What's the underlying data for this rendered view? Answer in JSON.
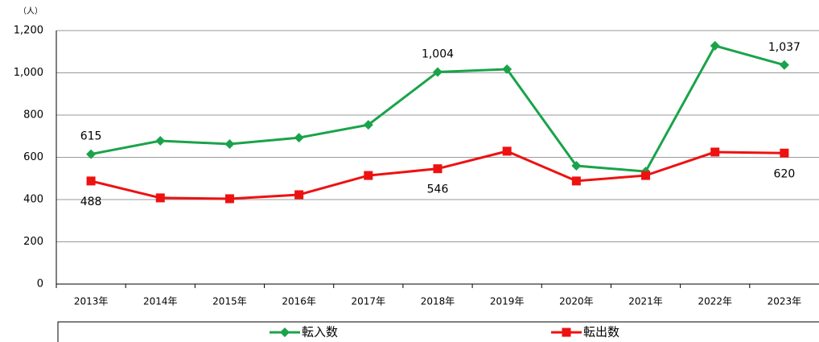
{
  "chart_data": {
    "type": "line",
    "y_axis_unit": "（人）",
    "categories": [
      "2013年",
      "2014年",
      "2015年",
      "2016年",
      "2017年",
      "2018年",
      "2019年",
      "2020年",
      "2021年",
      "2022年",
      "2023年"
    ],
    "series": [
      {
        "name": "転入数",
        "color": "#1aa34a",
        "marker": "diamond",
        "values": [
          615,
          678,
          663,
          693,
          754,
          1004,
          1017,
          560,
          533,
          1128,
          1037
        ],
        "value_labels": [
          "615",
          null,
          null,
          null,
          null,
          "1,004",
          null,
          null,
          null,
          null,
          "1,037"
        ]
      },
      {
        "name": "転出数",
        "color": "#ee1111",
        "marker": "square",
        "values": [
          488,
          408,
          404,
          423,
          514,
          546,
          629,
          488,
          514,
          625,
          620
        ],
        "value_labels": [
          "488",
          null,
          null,
          null,
          null,
          "546",
          null,
          null,
          null,
          null,
          "620"
        ]
      }
    ],
    "ylim": [
      0,
      1200
    ],
    "yticks": [
      0,
      200,
      400,
      600,
      800,
      {
        "value": 1000,
        "label": "1,000"
      },
      {
        "value": 1200,
        "label": "1,200"
      }
    ],
    "grid": true
  }
}
